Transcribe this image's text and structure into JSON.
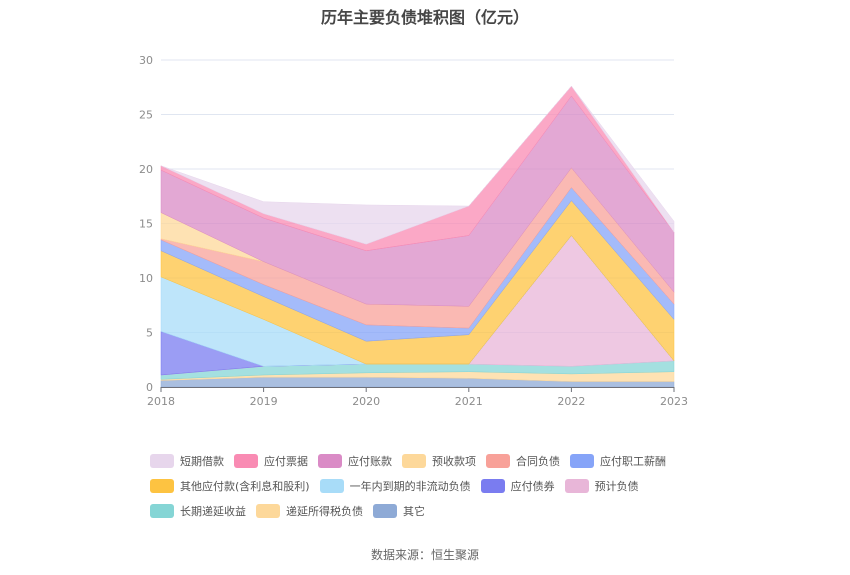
{
  "title": "历年主要负债堆积图（亿元）",
  "source": "数据来源：恒生聚源",
  "chart_data": {
    "type": "area",
    "stacked": true,
    "title": "历年主要负债堆积图（亿元）",
    "xlabel": "",
    "ylabel": "",
    "ylim": [
      0,
      30
    ],
    "yticks": [
      0,
      5,
      10,
      15,
      20,
      25,
      30
    ],
    "grid": true,
    "legend_position": "bottom",
    "categories": [
      "2018",
      "2019",
      "2020",
      "2021",
      "2022",
      "2023"
    ],
    "series": [
      {
        "name": "其它",
        "color": "#8eaad6",
        "values": [
          0.6,
          0.9,
          0.9,
          0.8,
          0.5,
          0.5
        ]
      },
      {
        "name": "递延所得税负债",
        "color": "#fdd89a",
        "values": [
          0.1,
          0.2,
          0.4,
          0.6,
          0.7,
          0.9
        ]
      },
      {
        "name": "长期递延收益",
        "color": "#85d5d5",
        "values": [
          0.4,
          0.8,
          0.8,
          0.7,
          0.7,
          1.0
        ]
      },
      {
        "name": "预计负债",
        "color": "#e8b6d8",
        "values": [
          0,
          0,
          0,
          0,
          12.0,
          0
        ]
      },
      {
        "name": "应付债券",
        "color": "#7a7cf0",
        "values": [
          4.0,
          0,
          0,
          0,
          0,
          0
        ]
      },
      {
        "name": "一年内到期的非流动负债",
        "color": "#a8dcf8",
        "values": [
          5.0,
          4.3,
          0,
          0,
          0,
          0
        ]
      },
      {
        "name": "其他应付款(含利息和股利)",
        "color": "#fdc341",
        "values": [
          2.4,
          2.1,
          2.1,
          2.7,
          3.2,
          3.8
        ]
      },
      {
        "name": "应付职工薪酬",
        "color": "#86a4f8",
        "values": [
          1.0,
          1.1,
          1.5,
          0.6,
          1.2,
          1.4
        ]
      },
      {
        "name": "合同负债",
        "color": "#f8a199",
        "values": [
          0.1,
          2.1,
          1.9,
          2.0,
          1.8,
          1.1
        ]
      },
      {
        "name": "预收款项",
        "color": "#fdd89a",
        "values": [
          2.4,
          0,
          0,
          0,
          0,
          0
        ]
      },
      {
        "name": "应付账款",
        "color": "#da8bc6",
        "values": [
          3.9,
          4.0,
          4.9,
          6.5,
          6.6,
          5.5
        ]
      },
      {
        "name": "应付票据",
        "color": "#f98bb3",
        "values": [
          0.4,
          0.4,
          0.6,
          2.7,
          0.9,
          0
        ]
      },
      {
        "name": "短期借款",
        "color": "#e7d6ec",
        "values": [
          0,
          1.1,
          3.6,
          0,
          0,
          1.0
        ]
      }
    ]
  },
  "legend": {
    "rows": [
      [
        {
          "label": "短期借款",
          "color": "#e7d6ec"
        },
        {
          "label": "应付票据",
          "color": "#f98bb3"
        },
        {
          "label": "应付账款",
          "color": "#da8bc6"
        },
        {
          "label": "预收款项",
          "color": "#fdd89a"
        },
        {
          "label": "合同负债",
          "color": "#f8a199"
        },
        {
          "label": "应付职工薪酬",
          "color": "#86a4f8"
        }
      ],
      [
        {
          "label": "其他应付款(含利息和股利)",
          "color": "#fdc341"
        },
        {
          "label": "一年内到期的非流动负债",
          "color": "#a8dcf8"
        },
        {
          "label": "应付债券",
          "color": "#7a7cf0"
        },
        {
          "label": "预计负债",
          "color": "#e8b6d8"
        }
      ],
      [
        {
          "label": "长期递延收益",
          "color": "#85d5d5"
        },
        {
          "label": "递延所得税负债",
          "color": "#fdd89a"
        },
        {
          "label": "其它",
          "color": "#8eaad6"
        }
      ]
    ]
  }
}
